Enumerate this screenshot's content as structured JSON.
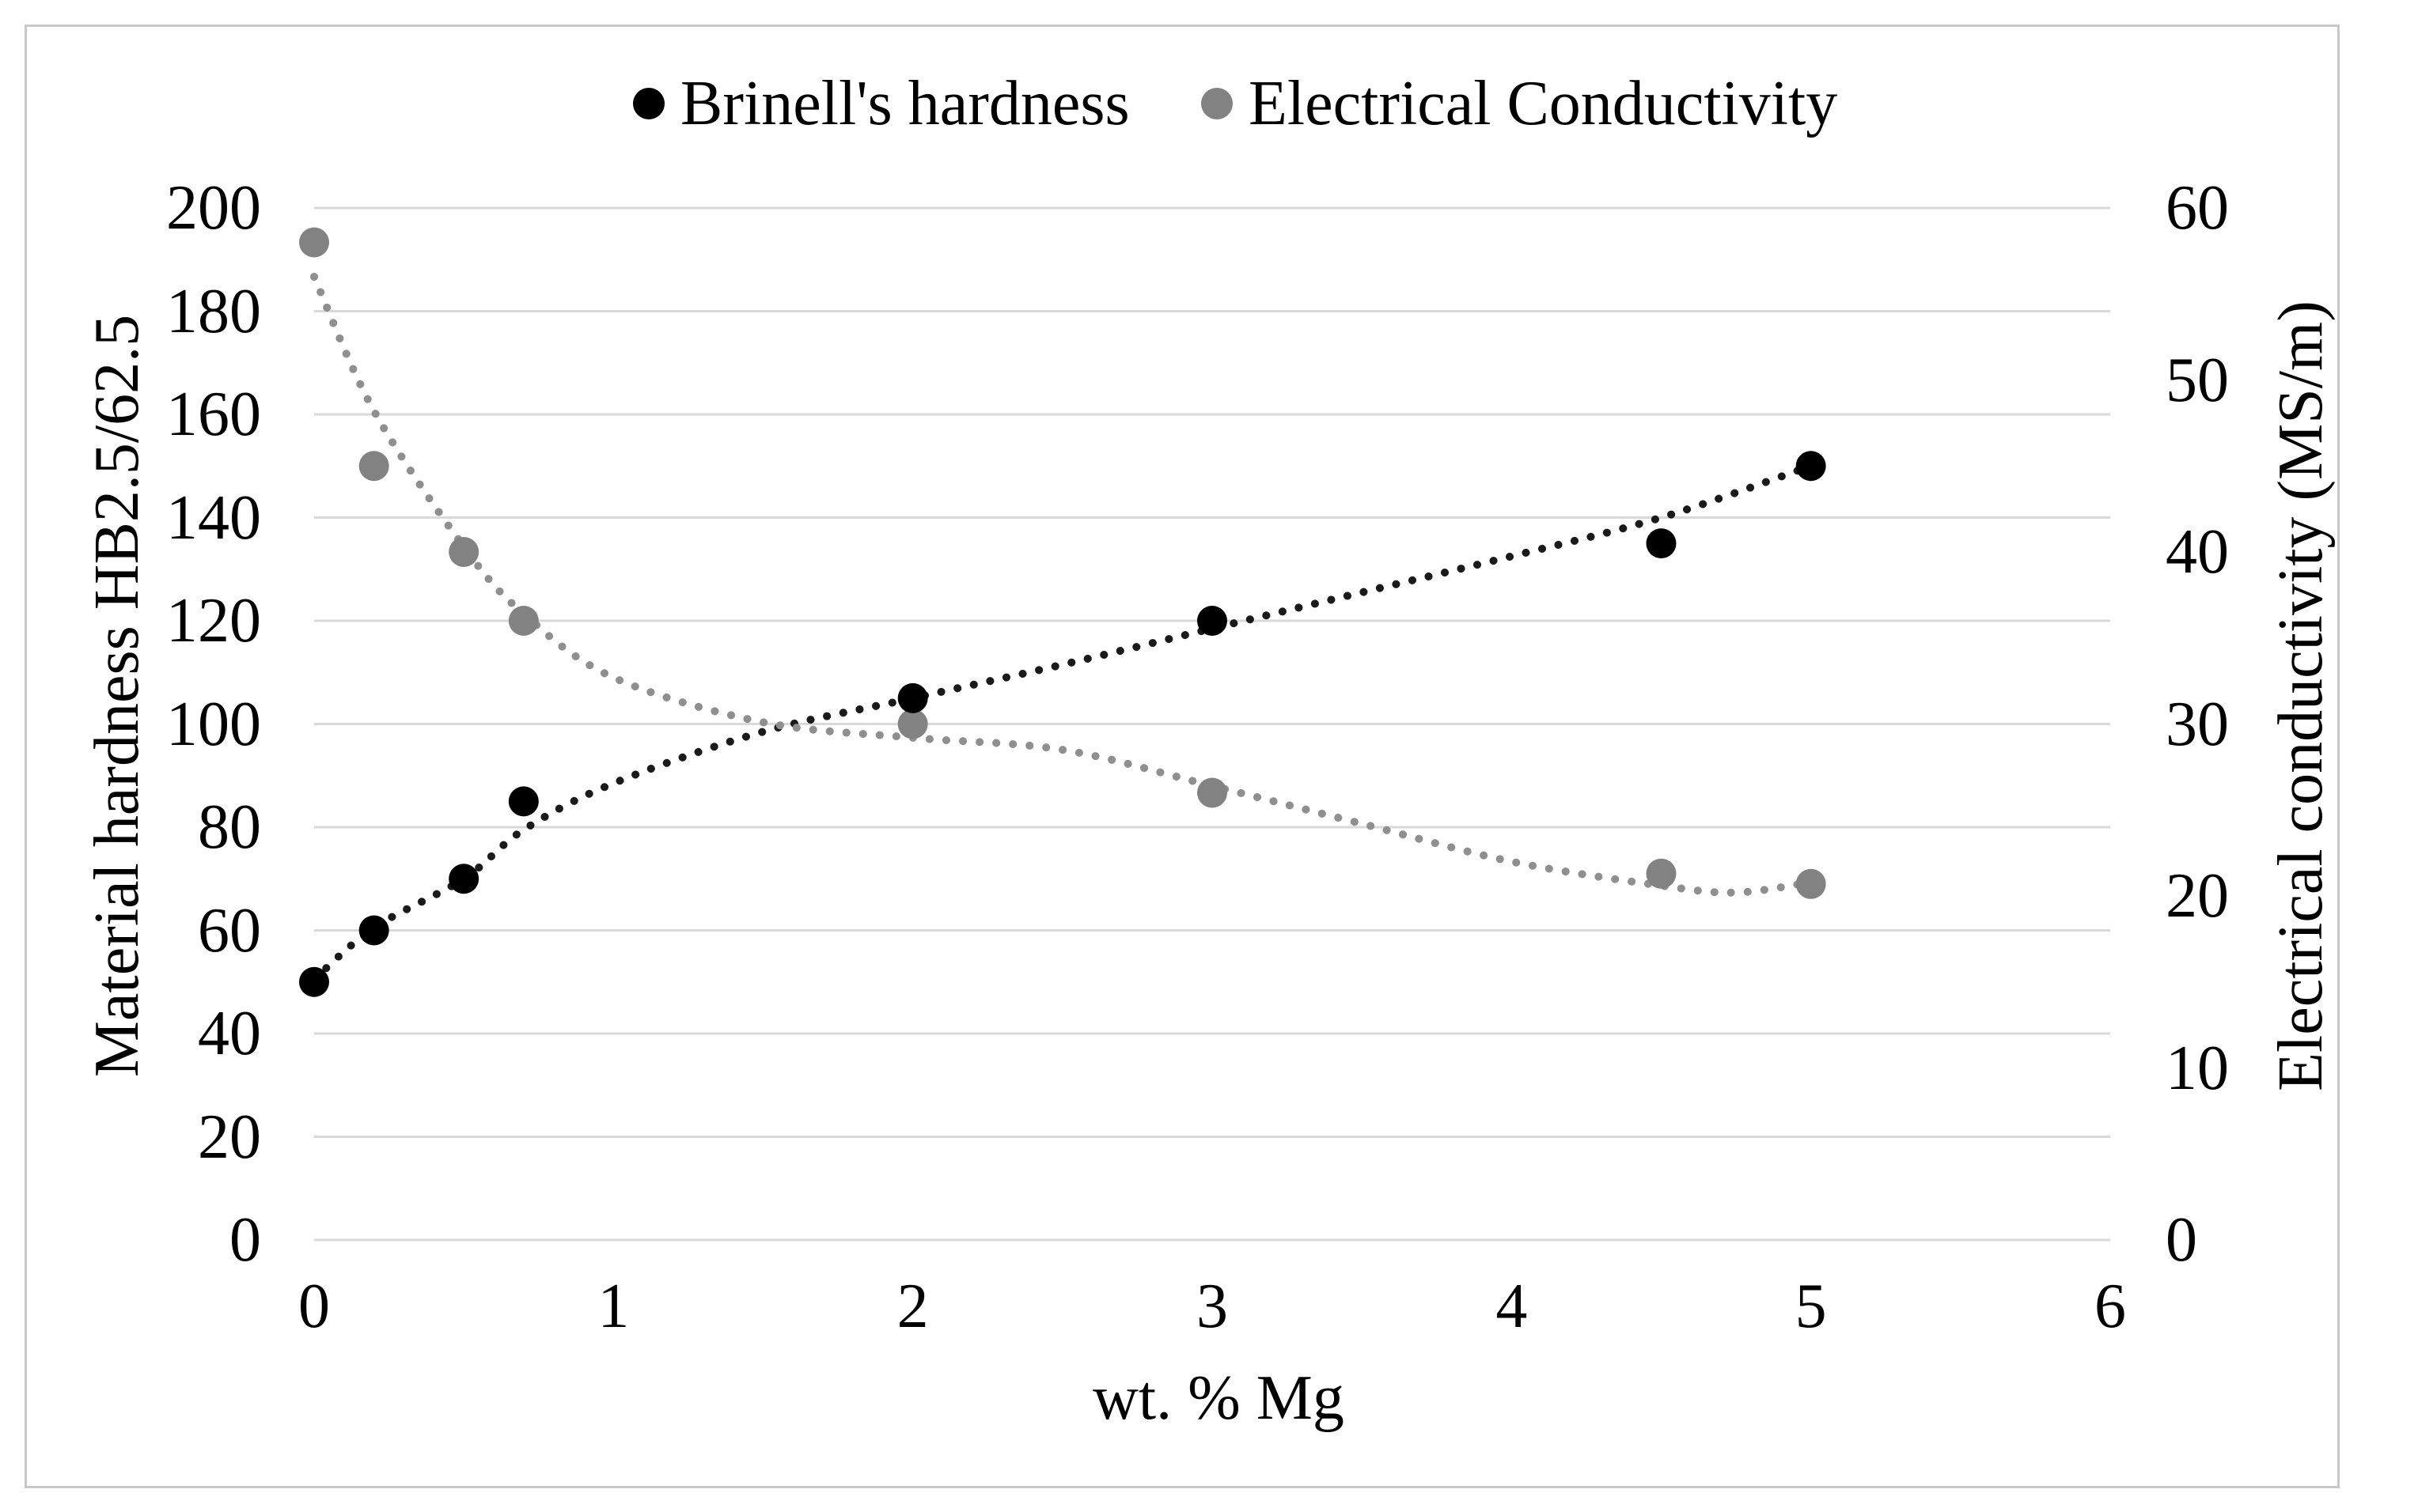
{
  "chart_data": {
    "type": "scatter",
    "title": "",
    "legend": {
      "position": "top",
      "items": [
        {
          "label": "Brinell's hardness",
          "color": "#000000"
        },
        {
          "label": "Electrical Conductivity",
          "color": "#828282"
        }
      ]
    },
    "xlabel": "wt. % Mg",
    "ylabel_left": "Material hardness HB2.5/62.5",
    "ylabel_right": "Electrical conductivity (MS/m)",
    "xlim": [
      0,
      6
    ],
    "ylim_left": [
      0,
      200
    ],
    "ylim_right": [
      0,
      60
    ],
    "x_ticks": [
      0,
      1,
      2,
      3,
      4,
      5,
      6
    ],
    "y_ticks_left": [
      0,
      20,
      40,
      60,
      80,
      100,
      120,
      140,
      160,
      180,
      200
    ],
    "y_ticks_right": [
      0,
      10,
      20,
      30,
      40,
      50,
      60
    ],
    "grid": "horizontal-only",
    "x": [
      0,
      0.2,
      0.5,
      0.7,
      2,
      3,
      4.5,
      5
    ],
    "series": [
      {
        "name": "Brinell's hardness",
        "axis": "left",
        "marker_color": "#000000",
        "values": [
          50,
          60,
          70,
          85,
          105,
          120,
          135,
          150
        ],
        "trendline": {
          "style": "dotted",
          "color": "#1a1a1a",
          "points": [
            [
              0,
              50.5
            ],
            [
              0.2,
              60.5
            ],
            [
              0.5,
              70
            ],
            [
              0.7,
              79.5
            ],
            [
              1,
              88.5
            ],
            [
              1.5,
              98.5
            ],
            [
              2,
              105
            ],
            [
              2.5,
              111.5
            ],
            [
              3,
              118.5
            ],
            [
              3.5,
              125.5
            ],
            [
              4,
              132.5
            ],
            [
              4.5,
              140
            ],
            [
              5,
              150
            ]
          ]
        }
      },
      {
        "name": "Electrical Conductivity",
        "axis": "right",
        "marker_color": "#828282",
        "values": [
          58,
          45,
          40,
          36,
          30,
          26,
          21.3,
          20.7
        ],
        "trendline": {
          "style": "dotted",
          "color": "#8f8f8f",
          "points": [
            [
              0,
              56
            ],
            [
              0.2,
              48.2
            ],
            [
              0.5,
              40.3
            ],
            [
              0.7,
              36.4
            ],
            [
              1,
              32.7
            ],
            [
              1.5,
              30.1
            ],
            [
              2,
              29.2
            ],
            [
              2.5,
              28.5
            ],
            [
              3,
              26.4
            ],
            [
              3.5,
              24.2
            ],
            [
              4,
              22
            ],
            [
              4.5,
              20.6
            ],
            [
              4.75,
              20.2
            ],
            [
              5,
              20.8
            ]
          ]
        }
      }
    ],
    "colors": {
      "gridline": "#d9d9d9",
      "border": "#c8c8c8",
      "text": "#000000",
      "background": "#ffffff"
    }
  }
}
